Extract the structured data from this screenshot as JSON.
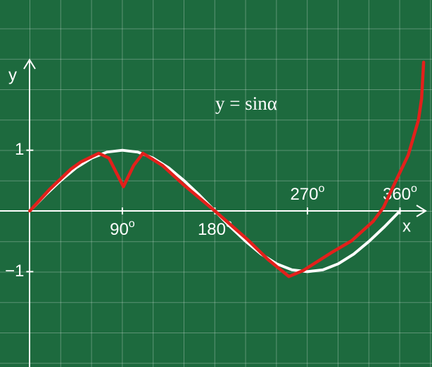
{
  "chart_data": {
    "type": "line",
    "title": "y = sinα",
    "x_label": "x",
    "y_label": "y",
    "xlim": [
      -29,
      385
    ],
    "ylim": [
      -2.57,
      2.49
    ],
    "xticks": [
      {
        "value": 90,
        "label": "90",
        "sup": "o"
      },
      {
        "value": 180,
        "label": "180",
        "sup": "o"
      },
      {
        "value": 270,
        "label": "270",
        "sup": "o"
      },
      {
        "value": 360,
        "label": "360",
        "sup": "o"
      }
    ],
    "yticks": [
      {
        "value": 1,
        "label": "1"
      },
      {
        "value": -1,
        "label": "−1"
      }
    ],
    "series": [
      {
        "color": "#ffffff",
        "x": [
          0,
          15,
          30,
          45,
          60,
          75,
          90,
          105,
          120,
          135,
          150,
          165,
          180,
          195,
          210,
          225,
          240,
          255,
          270,
          285,
          300,
          315,
          330,
          345,
          360
        ],
        "values": [
          0,
          0.26,
          0.5,
          0.71,
          0.87,
          0.97,
          1,
          0.97,
          0.87,
          0.71,
          0.5,
          0.26,
          0,
          -0.26,
          -0.5,
          -0.71,
          -0.87,
          -0.97,
          -1,
          -0.97,
          -0.87,
          -0.71,
          -0.5,
          -0.26,
          0
        ]
      },
      {
        "color": "#e3201b",
        "x": [
          0,
          19,
          40,
          50,
          67,
          77,
          91,
          101,
          110,
          129,
          149,
          180,
          211,
          231,
          252,
          266,
          293,
          313,
          334,
          344,
          355,
          368,
          378,
          381,
          383
        ],
        "values": [
          0,
          0.35,
          0.69,
          0.81,
          0.95,
          0.87,
          0.4,
          0.75,
          0.95,
          0.75,
          0.44,
          0,
          -0.46,
          -0.79,
          -1.08,
          -0.98,
          -0.69,
          -0.49,
          -0.17,
          0.06,
          0.46,
          0.92,
          1.5,
          1.85,
          2.45
        ]
      }
    ]
  }
}
